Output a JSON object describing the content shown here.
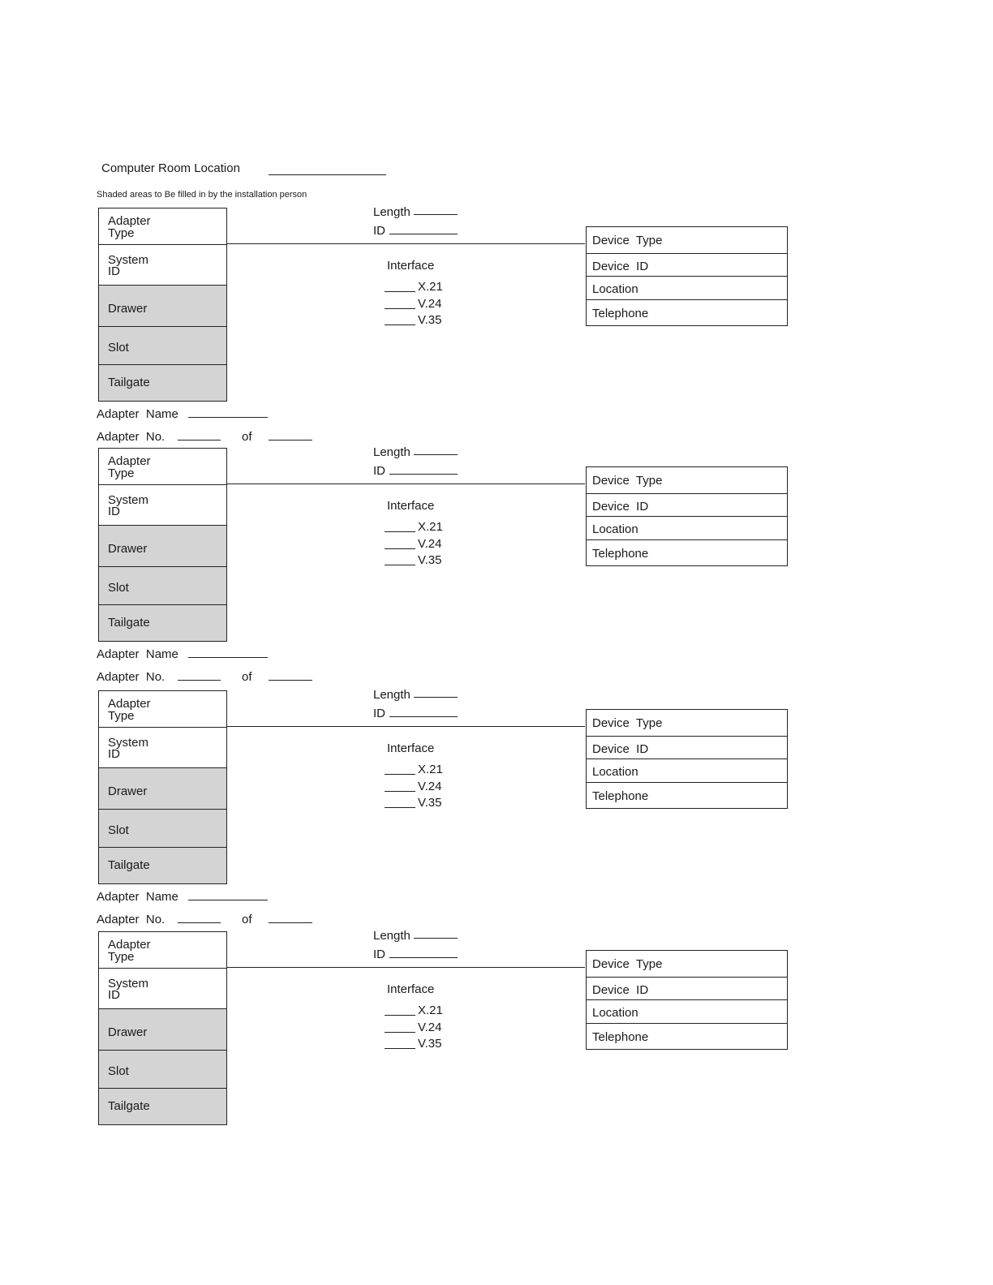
{
  "header": {
    "title": "Computer Room Location",
    "subtitle": "Shaded areas to Be filled in by the installation person"
  },
  "labels": {
    "adapter_type": "Adapter\nType",
    "system_id": "System\nID",
    "drawer": "Drawer",
    "slot": "Slot",
    "tailgate": "Tailgate",
    "length": "Length",
    "id": "ID",
    "interface": "Interface",
    "x21": "X.21",
    "v24": "V.24",
    "v35": "V.35",
    "device_type": "Device  Type",
    "device_id": "Device  ID",
    "location": "Location",
    "telephone": "Telephone",
    "adapter_name": "Adapter  Name",
    "adapter_no": "Adapter  No.",
    "of": "of"
  },
  "shade_color": "#d4d4d4",
  "block_count": 4
}
